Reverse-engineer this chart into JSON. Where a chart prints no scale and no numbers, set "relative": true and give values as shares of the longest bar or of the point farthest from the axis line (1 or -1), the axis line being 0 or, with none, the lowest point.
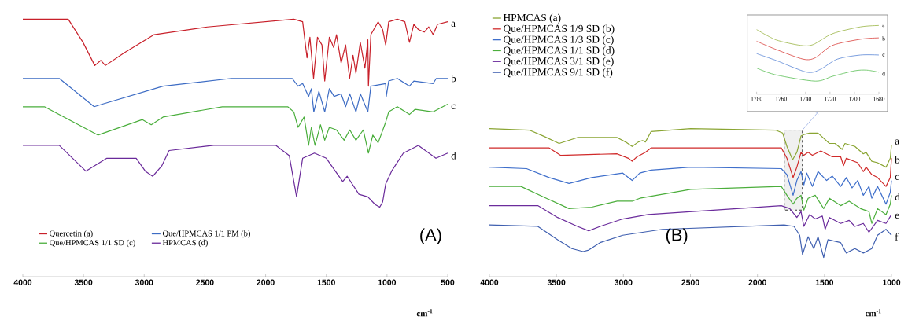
{
  "chart_data": [
    {
      "type": "line",
      "relative": true,
      "xlim": [
        4000,
        500
      ],
      "xticks": [
        4000,
        3500,
        3000,
        2500,
        2000,
        1500,
        1000,
        500
      ],
      "xlabel": "cm$^{-1}$",
      "tick_labels": "x",
      "legend": "bottom left",
      "series": [
        {
          "name": "Quercetin (a)",
          "color": "#c8202a",
          "x": [
            4000,
            3626,
            3504,
            3407,
            3357,
            3320,
            3163,
            2918,
            2480,
            1768,
            1695,
            1659,
            1635,
            1605,
            1573,
            1536,
            1513,
            1475,
            1439,
            1416,
            1378,
            1341,
            1308,
            1280,
            1256,
            1220,
            1182,
            1158,
            1153,
            1133,
            1073,
            1036,
            1011,
            986,
            915,
            853,
            815,
            779,
            742,
            694,
            656,
            620,
            584,
            500
          ],
          "values": [
            1.0,
            1.0,
            0.91,
            0.82,
            0.84,
            0.82,
            0.87,
            0.94,
            0.97,
            1.0,
            0.99,
            0.85,
            0.93,
            0.77,
            0.93,
            0.9,
            0.76,
            0.93,
            0.89,
            0.94,
            0.83,
            0.9,
            0.77,
            0.86,
            0.79,
            0.91,
            0.81,
            0.92,
            0.74,
            0.94,
            0.99,
            0.96,
            0.9,
            0.99,
            1.0,
            0.99,
            0.91,
            0.98,
            0.96,
            0.95,
            0.97,
            0.94,
            0.98,
            0.99
          ]
        },
        {
          "name": "Que/HPMCAS 1/1 PM (b)",
          "color": "#3d6cc4",
          "x": [
            4000,
            3700,
            3412,
            3345,
            2845,
            2282,
            1781,
            1733,
            1695,
            1646,
            1623,
            1603,
            1561,
            1513,
            1475,
            1436,
            1378,
            1341,
            1307,
            1256,
            1219,
            1158,
            1133,
            1011,
            1006,
            986,
            915,
            816,
            779,
            620,
            594,
            500
          ],
          "values": [
            0.77,
            0.77,
            0.66,
            0.67,
            0.74,
            0.77,
            0.77,
            0.74,
            0.75,
            0.7,
            0.73,
            0.64,
            0.72,
            0.64,
            0.73,
            0.7,
            0.71,
            0.66,
            0.71,
            0.64,
            0.71,
            0.64,
            0.74,
            0.75,
            0.7,
            0.76,
            0.77,
            0.74,
            0.76,
            0.75,
            0.77,
            0.77
          ]
        },
        {
          "name": "Que/HPMCAS 1/1 SD (c)",
          "color": "#4aae3c",
          "x": [
            4000,
            3822,
            3382,
            3015,
            2942,
            2845,
            2357,
            1818,
            1768,
            1733,
            1683,
            1646,
            1623,
            1593,
            1548,
            1513,
            1475,
            1416,
            1353,
            1307,
            1256,
            1195,
            1153,
            1117,
            1073,
            1011,
            986,
            915,
            815,
            768,
            620,
            500
          ],
          "values": [
            0.66,
            0.66,
            0.55,
            0.61,
            0.59,
            0.62,
            0.66,
            0.66,
            0.64,
            0.58,
            0.62,
            0.51,
            0.58,
            0.51,
            0.59,
            0.53,
            0.58,
            0.57,
            0.53,
            0.57,
            0.53,
            0.57,
            0.48,
            0.55,
            0.52,
            0.6,
            0.64,
            0.66,
            0.63,
            0.65,
            0.64,
            0.67
          ]
        },
        {
          "name": "HPMCAS (d)",
          "color": "#6a2a9a",
          "x": [
            4000,
            3700,
            3481,
            3308,
            3066,
            2991,
            2930,
            2856,
            2795,
            2428,
            1915,
            1805,
            1745,
            1695,
            1598,
            1500,
            1426,
            1365,
            1328,
            1231,
            1158,
            1097,
            1060,
            1036,
            1011,
            962,
            865,
            742,
            597,
            500
          ],
          "values": [
            0.51,
            0.51,
            0.41,
            0.46,
            0.46,
            0.41,
            0.39,
            0.43,
            0.49,
            0.51,
            0.51,
            0.47,
            0.31,
            0.46,
            0.48,
            0.46,
            0.41,
            0.37,
            0.39,
            0.32,
            0.31,
            0.28,
            0.27,
            0.29,
            0.36,
            0.41,
            0.48,
            0.51,
            0.46,
            0.48
          ]
        }
      ],
      "annotations": [
        {
          "text": "a",
          "x": 500,
          "y": 0.98
        },
        {
          "text": "b",
          "x": 500,
          "y": 0.77
        },
        {
          "text": "c",
          "x": 500,
          "y": 0.66
        },
        {
          "text": "d",
          "x": 500,
          "y": 0.47
        },
        "(A)"
      ]
    },
    {
      "type": "line",
      "relative": true,
      "xlim": [
        4000,
        1000
      ],
      "xticks": [
        4000,
        3500,
        3000,
        2500,
        2000,
        1500,
        1000
      ],
      "xlabel": "cm$^{-1}$",
      "tick_labels": "x",
      "legend": "top left",
      "series": [
        {
          "name": "HPMCAS (a)",
          "color": "#8aa533",
          "x": [
            4000,
            3702,
            3597,
            3480,
            3343,
            3047,
            2984,
            2935,
            2889,
            2857,
            2836,
            2794,
            2498,
            1865,
            1812,
            1780,
            1738,
            1706,
            1675,
            1654,
            1611,
            1548,
            1463,
            1421,
            1368,
            1347,
            1273,
            1210,
            1189,
            1147,
            1104,
            1041,
            1009,
            1000
          ],
          "values": [
            1.0,
            0.99,
            0.95,
            0.9,
            0.94,
            0.94,
            0.91,
            0.88,
            0.91,
            0.92,
            0.91,
            0.98,
            1.0,
            0.99,
            0.97,
            0.88,
            0.79,
            0.84,
            0.95,
            0.96,
            0.97,
            0.97,
            0.9,
            0.9,
            0.86,
            0.9,
            0.88,
            0.83,
            0.84,
            0.78,
            0.77,
            0.74,
            0.8,
            0.89
          ]
        },
        {
          "name": "Que/HPMCAS 1/9 SD (b)",
          "color": "#d02a2a",
          "x": [
            4000,
            3554,
            3470,
            3047,
            2963,
            2935,
            2899,
            2836,
            2794,
            1822,
            1780,
            1734,
            1706,
            1675,
            1654,
            1622,
            1590,
            1527,
            1442,
            1379,
            1358,
            1337,
            1252,
            1210,
            1189,
            1147,
            1104,
            1041,
            1009,
            1000
          ],
          "values": [
            0.87,
            0.87,
            0.82,
            0.83,
            0.8,
            0.78,
            0.81,
            0.84,
            0.87,
            0.87,
            0.8,
            0.67,
            0.74,
            0.84,
            0.82,
            0.84,
            0.82,
            0.85,
            0.81,
            0.81,
            0.75,
            0.8,
            0.77,
            0.71,
            0.74,
            0.69,
            0.67,
            0.61,
            0.67,
            0.8
          ]
        },
        {
          "name": "Que/HPMCAS 1/3 SD (c)",
          "color": "#3f6fcb",
          "x": [
            4000,
            3723,
            3554,
            3406,
            3237,
            3005,
            2935,
            2878,
            2794,
            2498,
            1822,
            1780,
            1734,
            1706,
            1675,
            1654,
            1632,
            1590,
            1548,
            1484,
            1442,
            1379,
            1337,
            1294,
            1252,
            1210,
            1168,
            1147,
            1104,
            1041,
            1009,
            1000
          ],
          "values": [
            0.74,
            0.73,
            0.67,
            0.63,
            0.67,
            0.7,
            0.65,
            0.7,
            0.72,
            0.74,
            0.73,
            0.69,
            0.55,
            0.65,
            0.71,
            0.62,
            0.7,
            0.61,
            0.71,
            0.65,
            0.68,
            0.61,
            0.67,
            0.6,
            0.65,
            0.55,
            0.61,
            0.53,
            0.61,
            0.49,
            0.57,
            0.65
          ]
        },
        {
          "name": "Que/HPMCAS 1/1 SD (d)",
          "color": "#4cae3c",
          "x": [
            4000,
            3765,
            3575,
            3406,
            3237,
            3047,
            2935,
            2878,
            2498,
            1822,
            1780,
            1734,
            1706,
            1675,
            1654,
            1622,
            1569,
            1506,
            1463,
            1379,
            1316,
            1231,
            1168,
            1147,
            1104,
            1041,
            1009,
            1000
          ],
          "values": [
            0.61,
            0.61,
            0.53,
            0.46,
            0.47,
            0.51,
            0.51,
            0.53,
            0.59,
            0.61,
            0.55,
            0.49,
            0.53,
            0.55,
            0.45,
            0.53,
            0.55,
            0.46,
            0.53,
            0.48,
            0.51,
            0.46,
            0.44,
            0.36,
            0.46,
            0.42,
            0.49,
            0.55
          ]
        },
        {
          "name": "Que/HPMCAS 3/1 SD (e)",
          "color": "#6b2c9c",
          "x": [
            4000,
            3639,
            3491,
            3343,
            3259,
            3174,
            3005,
            2815,
            1822,
            1759,
            1706,
            1675,
            1654,
            1611,
            1569,
            1516,
            1495,
            1463,
            1379,
            1316,
            1273,
            1210,
            1168,
            1104,
            1041,
            1000
          ],
          "values": [
            0.48,
            0.48,
            0.4,
            0.34,
            0.31,
            0.34,
            0.39,
            0.42,
            0.48,
            0.46,
            0.4,
            0.44,
            0.34,
            0.42,
            0.39,
            0.41,
            0.32,
            0.4,
            0.36,
            0.38,
            0.34,
            0.36,
            0.3,
            0.38,
            0.36,
            0.42
          ]
        },
        {
          "name": "Que/HPMCAS 9/1 SD (f)",
          "color": "#4060b0",
          "x": [
            4000,
            3639,
            3491,
            3385,
            3301,
            3259,
            3174,
            3005,
            2710,
            1801,
            1727,
            1685,
            1664,
            1622,
            1580,
            1548,
            1506,
            1474,
            1379,
            1337,
            1273,
            1210,
            1147,
            1104,
            1041,
            1000
          ],
          "values": [
            0.35,
            0.34,
            0.25,
            0.19,
            0.17,
            0.18,
            0.23,
            0.28,
            0.32,
            0.35,
            0.34,
            0.28,
            0.15,
            0.27,
            0.19,
            0.27,
            0.13,
            0.25,
            0.23,
            0.16,
            0.19,
            0.16,
            0.19,
            0.28,
            0.32,
            0.28
          ]
        }
      ],
      "bands": [
        {
          "axis": "x",
          "from": 1800,
          "to": 1665,
          "color": "#222222"
        }
      ],
      "annotations": [
        {
          "text": "a",
          "x": 1000,
          "y": 0.91
        },
        {
          "text": "b",
          "x": 1000,
          "y": 0.79
        },
        {
          "text": "c",
          "x": 1000,
          "y": 0.67
        },
        {
          "text": "d",
          "x": 1000,
          "y": 0.54
        },
        {
          "text": "e",
          "x": 1000,
          "y": 0.41
        },
        {
          "text": "f",
          "x": 1000,
          "y": 0.27
        },
        "(B)"
      ]
    },
    {
      "type": "line",
      "relative": true,
      "xlim": [
        1780,
        1680
      ],
      "xticks": [
        1780,
        1760,
        1740,
        1720,
        1700,
        1680
      ],
      "tick_labels": "x",
      "series": [
        {
          "color": "#9ab545",
          "x": [
            1780,
            1764,
            1744,
            1734,
            1718,
            1695,
            1680
          ],
          "values": [
            0.94,
            0.79,
            0.71,
            0.72,
            0.88,
            0.98,
            1.0
          ]
        },
        {
          "color": "#d9413e",
          "x": [
            1780,
            1764,
            1742,
            1732,
            1718,
            1695,
            1680
          ],
          "values": [
            0.77,
            0.65,
            0.51,
            0.53,
            0.71,
            0.8,
            0.82
          ]
        },
        {
          "color": "#5b86d6",
          "x": [
            1780,
            1764,
            1739,
            1728,
            1714,
            1695,
            1680
          ],
          "values": [
            0.59,
            0.49,
            0.32,
            0.36,
            0.51,
            0.57,
            0.57
          ]
        },
        {
          "color": "#5bbf55",
          "x": [
            1780,
            1764,
            1732,
            1718,
            1700,
            1690,
            1680
          ],
          "values": [
            0.38,
            0.28,
            0.19,
            0.26,
            0.34,
            0.35,
            0.32
          ]
        }
      ],
      "annotations": [
        {
          "text": "a",
          "x": 1680,
          "y": 1.0
        },
        {
          "text": "b",
          "x": 1680,
          "y": 0.81
        },
        {
          "text": "c",
          "x": 1680,
          "y": 0.57
        },
        {
          "text": "d",
          "x": 1680,
          "y": 0.3
        }
      ]
    }
  ]
}
